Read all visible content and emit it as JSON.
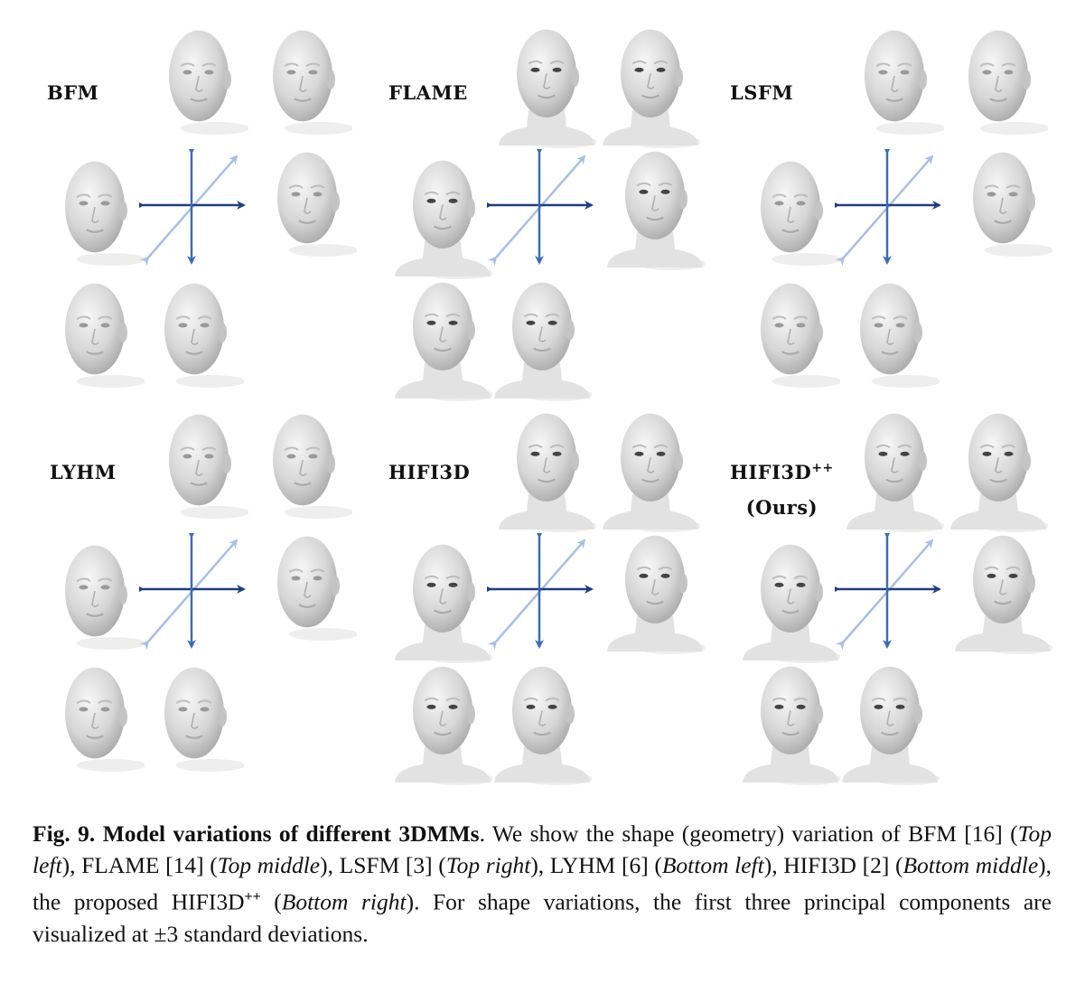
{
  "panels": [
    {
      "id": "bfm",
      "label": "BFM",
      "label_sup": "",
      "label_sub": ""
    },
    {
      "id": "flame",
      "label": "FLAME",
      "label_sup": "",
      "label_sub": ""
    },
    {
      "id": "lsfm",
      "label": "LSFM",
      "label_sup": "",
      "label_sub": ""
    },
    {
      "id": "lyhm",
      "label": "LYHM",
      "label_sup": "",
      "label_sub": ""
    },
    {
      "id": "hifi3d",
      "label": "HIFI3D",
      "label_sup": "",
      "label_sub": ""
    },
    {
      "id": "hifi3dpp",
      "label": "HIFI3D",
      "label_sup": "++",
      "label_sub": "(Ours)"
    }
  ],
  "caption": {
    "fig_num": "Fig. 9.",
    "title": "Model variations of different 3DMMs",
    "p1": ". We show the shape (geometry) variation of BFM [16] (",
    "i1": "Top left",
    "p2": "), FLAME [14] (",
    "i2": "Top middle",
    "p3": "), LSFM [3] (",
    "i3": "Top right",
    "p4": "), LYHM [6] (",
    "i4": "Bottom left",
    "p5": "), HIFI3D [2] (",
    "i5": "Bottom middle",
    "p6": "), the proposed HIFI3D",
    "sup": "++",
    "p7": " (",
    "i6": "Bottom right",
    "p8": "). For shape variations, the first three principal components are visualized at ±3 standard deviations."
  },
  "colors": {
    "arrow_dark": "#1f3f7a",
    "arrow_mid": "#3d6ab8",
    "arrow_light": "#a9bfe2",
    "skin": "#d9d9d9"
  }
}
